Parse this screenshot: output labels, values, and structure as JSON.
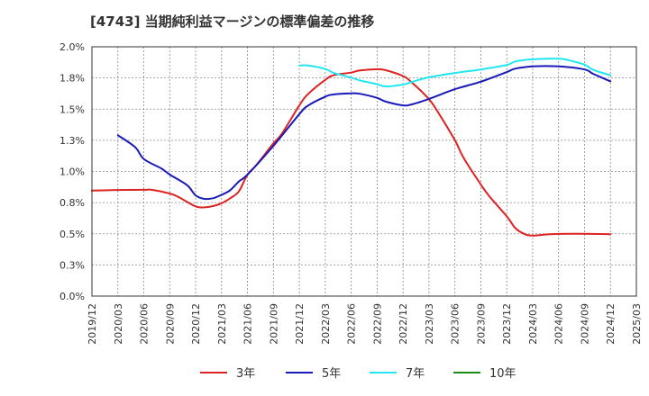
{
  "chart_data": {
    "type": "line",
    "title": "[4743]  当期純利益マージンの標準偏差の推移",
    "xlabel": "",
    "ylabel": "",
    "ylim": [
      0,
      2.0
    ],
    "yticks": [
      "0.0%",
      "0.3%",
      "0.5%",
      "0.8%",
      "1.0%",
      "1.3%",
      "1.5%",
      "1.8%",
      "2.0%"
    ],
    "xticks": [
      "2019/12",
      "2020/03",
      "2020/06",
      "2020/09",
      "2020/12",
      "2021/03",
      "2021/06",
      "2021/09",
      "2021/12",
      "2022/03",
      "2022/06",
      "2022/09",
      "2022/12",
      "2023/03",
      "2023/06",
      "2023/09",
      "2023/12",
      "2024/03",
      "2024/06",
      "2024/09",
      "2024/12",
      "2025/03"
    ],
    "grid": true,
    "legend_position": "bottom",
    "series": [
      {
        "name": "3年",
        "color": "#dd2222",
        "points": [
          [
            "2019/12",
            0.846
          ],
          [
            "2020/03",
            0.851
          ],
          [
            "2020/06",
            0.853
          ],
          [
            "2020/07",
            0.852
          ],
          [
            "2020/09",
            0.823
          ],
          [
            "2020/10",
            0.795
          ],
          [
            "2020/12",
            0.72
          ],
          [
            "2021/01",
            0.712
          ],
          [
            "2021/02",
            0.722
          ],
          [
            "2021/03",
            0.745
          ],
          [
            "2021/04",
            0.785
          ],
          [
            "2021/05",
            0.84
          ],
          [
            "2021/06",
            0.975
          ],
          [
            "2021/07",
            1.05
          ],
          [
            "2021/09",
            1.225
          ],
          [
            "2021/10",
            1.305
          ],
          [
            "2021/12",
            1.53
          ],
          [
            "2022/01",
            1.62
          ],
          [
            "2022/03",
            1.735
          ],
          [
            "2022/04",
            1.773
          ],
          [
            "2022/06",
            1.793
          ],
          [
            "2022/07",
            1.81
          ],
          [
            "2022/09",
            1.82
          ],
          [
            "2022/10",
            1.812
          ],
          [
            "2022/12",
            1.765
          ],
          [
            "2023/01",
            1.715
          ],
          [
            "2023/03",
            1.58
          ],
          [
            "2023/04",
            1.48
          ],
          [
            "2023/06",
            1.25
          ],
          [
            "2023/07",
            1.11
          ],
          [
            "2023/09",
            0.895
          ],
          [
            "2023/10",
            0.8
          ],
          [
            "2023/12",
            0.64
          ],
          [
            "2024/01",
            0.545
          ],
          [
            "2024/02",
            0.5
          ],
          [
            "2024/03",
            0.485
          ],
          [
            "2024/05",
            0.496
          ],
          [
            "2024/08",
            0.5
          ],
          [
            "2024/12",
            0.497
          ]
        ]
      },
      {
        "name": "5年",
        "color": "#1a1ab8",
        "points": [
          [
            "2020/03",
            1.29
          ],
          [
            "2020/05",
            1.195
          ],
          [
            "2020/06",
            1.1
          ],
          [
            "2020/08",
            1.025
          ],
          [
            "2020/09",
            0.975
          ],
          [
            "2020/11",
            0.89
          ],
          [
            "2020/12",
            0.808
          ],
          [
            "2021/01",
            0.78
          ],
          [
            "2021/02",
            0.785
          ],
          [
            "2021/03",
            0.812
          ],
          [
            "2021/04",
            0.85
          ],
          [
            "2021/05",
            0.92
          ],
          [
            "2021/06",
            0.975
          ],
          [
            "2021/09",
            1.205
          ],
          [
            "2021/12",
            1.46
          ],
          [
            "2022/01",
            1.528
          ],
          [
            "2022/03",
            1.6
          ],
          [
            "2022/04",
            1.618
          ],
          [
            "2022/06",
            1.627
          ],
          [
            "2022/07",
            1.623
          ],
          [
            "2022/09",
            1.59
          ],
          [
            "2022/10",
            1.56
          ],
          [
            "2022/12",
            1.53
          ],
          [
            "2023/01",
            1.538
          ],
          [
            "2023/03",
            1.582
          ],
          [
            "2023/06",
            1.66
          ],
          [
            "2023/09",
            1.72
          ],
          [
            "2023/12",
            1.797
          ],
          [
            "2024/01",
            1.825
          ],
          [
            "2024/03",
            1.843
          ],
          [
            "2024/06",
            1.843
          ],
          [
            "2024/09",
            1.818
          ],
          [
            "2024/10",
            1.783
          ],
          [
            "2024/12",
            1.723
          ]
        ]
      },
      {
        "name": "7年",
        "color": "#22e6f0",
        "points": [
          [
            "2021/12",
            1.85
          ],
          [
            "2022/01",
            1.85
          ],
          [
            "2022/03",
            1.822
          ],
          [
            "2022/04",
            1.79
          ],
          [
            "2022/06",
            1.753
          ],
          [
            "2022/07",
            1.73
          ],
          [
            "2022/09",
            1.7
          ],
          [
            "2022/10",
            1.682
          ],
          [
            "2022/12",
            1.697
          ],
          [
            "2023/01",
            1.718
          ],
          [
            "2023/03",
            1.755
          ],
          [
            "2023/06",
            1.79
          ],
          [
            "2023/09",
            1.818
          ],
          [
            "2023/12",
            1.855
          ],
          [
            "2024/01",
            1.882
          ],
          [
            "2024/03",
            1.9
          ],
          [
            "2024/06",
            1.905
          ],
          [
            "2024/07",
            1.895
          ],
          [
            "2024/09",
            1.857
          ],
          [
            "2024/10",
            1.815
          ],
          [
            "2024/12",
            1.772
          ]
        ]
      },
      {
        "name": "10年",
        "color": "#1a8a1a",
        "points": []
      }
    ]
  }
}
